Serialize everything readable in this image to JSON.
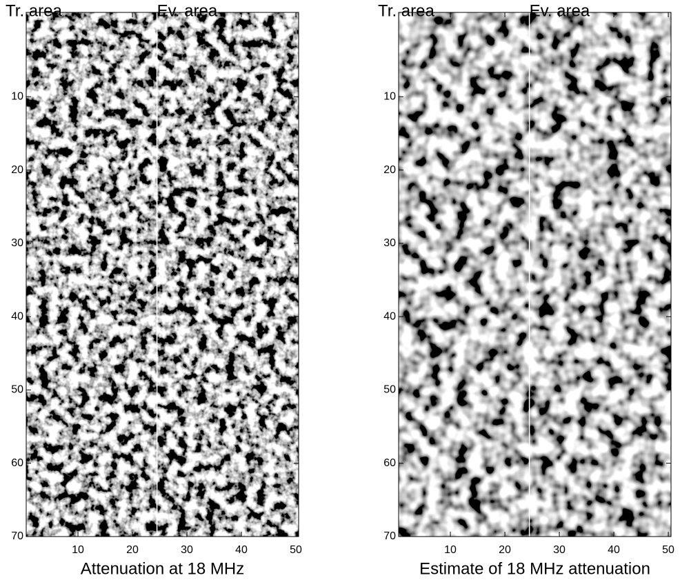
{
  "chart_data": [
    {
      "type": "image",
      "xlabel": "Attenuation at 18 MHz",
      "annotations": [
        "Tr. area",
        "Ev. area"
      ],
      "xlim": [
        0.5,
        50.5
      ],
      "ylim": [
        -1.5,
        70
      ],
      "xticks": [
        10,
        20,
        30,
        40,
        50
      ],
      "yticks": [
        10,
        20,
        30,
        40,
        50,
        60,
        70
      ],
      "divider_x": 24.5,
      "colormap": "gray"
    },
    {
      "type": "image",
      "xlabel": "Estimate of 18 MHz attenuation",
      "annotations": [
        "Tr. area",
        "Ev. area"
      ],
      "xlim": [
        0.5,
        50.5
      ],
      "ylim": [
        -1.5,
        70
      ],
      "xticks": [
        10,
        20,
        30,
        40,
        50
      ],
      "yticks": [
        10,
        20,
        30,
        40,
        50,
        60,
        70
      ],
      "divider_x": 24.5,
      "colormap": "gray"
    }
  ]
}
